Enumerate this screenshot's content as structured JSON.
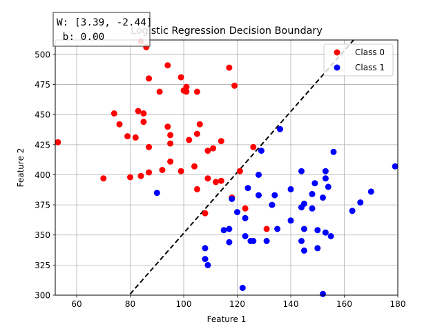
{
  "chart_data": {
    "type": "scatter",
    "title": "Logistic Regression Decision Boundary",
    "xlabel": "Feature 1",
    "ylabel": "Feature 2",
    "xlim": [
      52,
      180
    ],
    "ylim": [
      300,
      512
    ],
    "xticks": [
      60,
      80,
      100,
      120,
      140,
      160,
      180
    ],
    "yticks": [
      300,
      325,
      350,
      375,
      400,
      425,
      450,
      475,
      500
    ],
    "grid": true,
    "legend_position": "top-right",
    "annotation": {
      "line1": "W: [3.39, -2.44]",
      "line2": " b: 0.00"
    },
    "decision_boundary": {
      "style": "dashed",
      "color": "#000000",
      "points": [
        [
          80.0,
          301.0
        ],
        [
          163.5,
          512.0
        ]
      ]
    },
    "series": [
      {
        "name": "Class 0",
        "color": "#ff0000",
        "points": [
          [
            53,
            427
          ],
          [
            70,
            397
          ],
          [
            74,
            451
          ],
          [
            76,
            442
          ],
          [
            79,
            432
          ],
          [
            80,
            398
          ],
          [
            82,
            431
          ],
          [
            83,
            453
          ],
          [
            84,
            399
          ],
          [
            84,
            511
          ],
          [
            85,
            451
          ],
          [
            85,
            444
          ],
          [
            86,
            506
          ],
          [
            87,
            480
          ],
          [
            87,
            423
          ],
          [
            87,
            402
          ],
          [
            91,
            469
          ],
          [
            92,
            404
          ],
          [
            94,
            491
          ],
          [
            94,
            440
          ],
          [
            95,
            426
          ],
          [
            95,
            433
          ],
          [
            95,
            411
          ],
          [
            99,
            481
          ],
          [
            99,
            403
          ],
          [
            100,
            470
          ],
          [
            101,
            473
          ],
          [
            101,
            469
          ],
          [
            102,
            429
          ],
          [
            104,
            407
          ],
          [
            105,
            434
          ],
          [
            105,
            469
          ],
          [
            105,
            388
          ],
          [
            106,
            442
          ],
          [
            108,
            368
          ],
          [
            109,
            420
          ],
          [
            109,
            397
          ],
          [
            111,
            422
          ],
          [
            112,
            394
          ],
          [
            114,
            428
          ],
          [
            114,
            395
          ],
          [
            117,
            489
          ],
          [
            118,
            381
          ],
          [
            119,
            474
          ],
          [
            121,
            403
          ],
          [
            123,
            372
          ],
          [
            126,
            423
          ],
          [
            131,
            355
          ]
        ]
      },
      {
        "name": "Class 1",
        "color": "#0000ff",
        "points": [
          [
            90,
            385
          ],
          [
            108,
            339
          ],
          [
            108,
            330
          ],
          [
            109,
            325
          ],
          [
            115,
            354
          ],
          [
            117,
            344
          ],
          [
            117,
            355
          ],
          [
            118,
            380
          ],
          [
            120,
            369
          ],
          [
            122,
            306
          ],
          [
            123,
            364
          ],
          [
            123,
            349
          ],
          [
            124,
            389
          ],
          [
            125,
            345
          ],
          [
            126,
            345
          ],
          [
            128,
            400
          ],
          [
            128,
            383
          ],
          [
            129,
            420
          ],
          [
            131,
            345
          ],
          [
            133,
            375
          ],
          [
            134,
            383
          ],
          [
            135,
            355
          ],
          [
            136,
            438
          ],
          [
            140,
            362
          ],
          [
            140,
            388
          ],
          [
            144,
            403
          ],
          [
            144,
            373
          ],
          [
            144,
            345
          ],
          [
            145,
            376
          ],
          [
            145,
            355
          ],
          [
            145,
            337
          ],
          [
            148,
            384
          ],
          [
            148,
            372
          ],
          [
            149,
            393
          ],
          [
            150,
            354
          ],
          [
            150,
            339
          ],
          [
            152,
            381
          ],
          [
            152,
            301
          ],
          [
            153,
            403
          ],
          [
            153,
            397
          ],
          [
            153,
            352
          ],
          [
            154,
            390
          ],
          [
            155,
            349
          ],
          [
            156,
            419
          ],
          [
            163,
            370
          ],
          [
            166,
            377
          ],
          [
            170,
            386
          ],
          [
            179,
            407
          ]
        ]
      }
    ]
  }
}
